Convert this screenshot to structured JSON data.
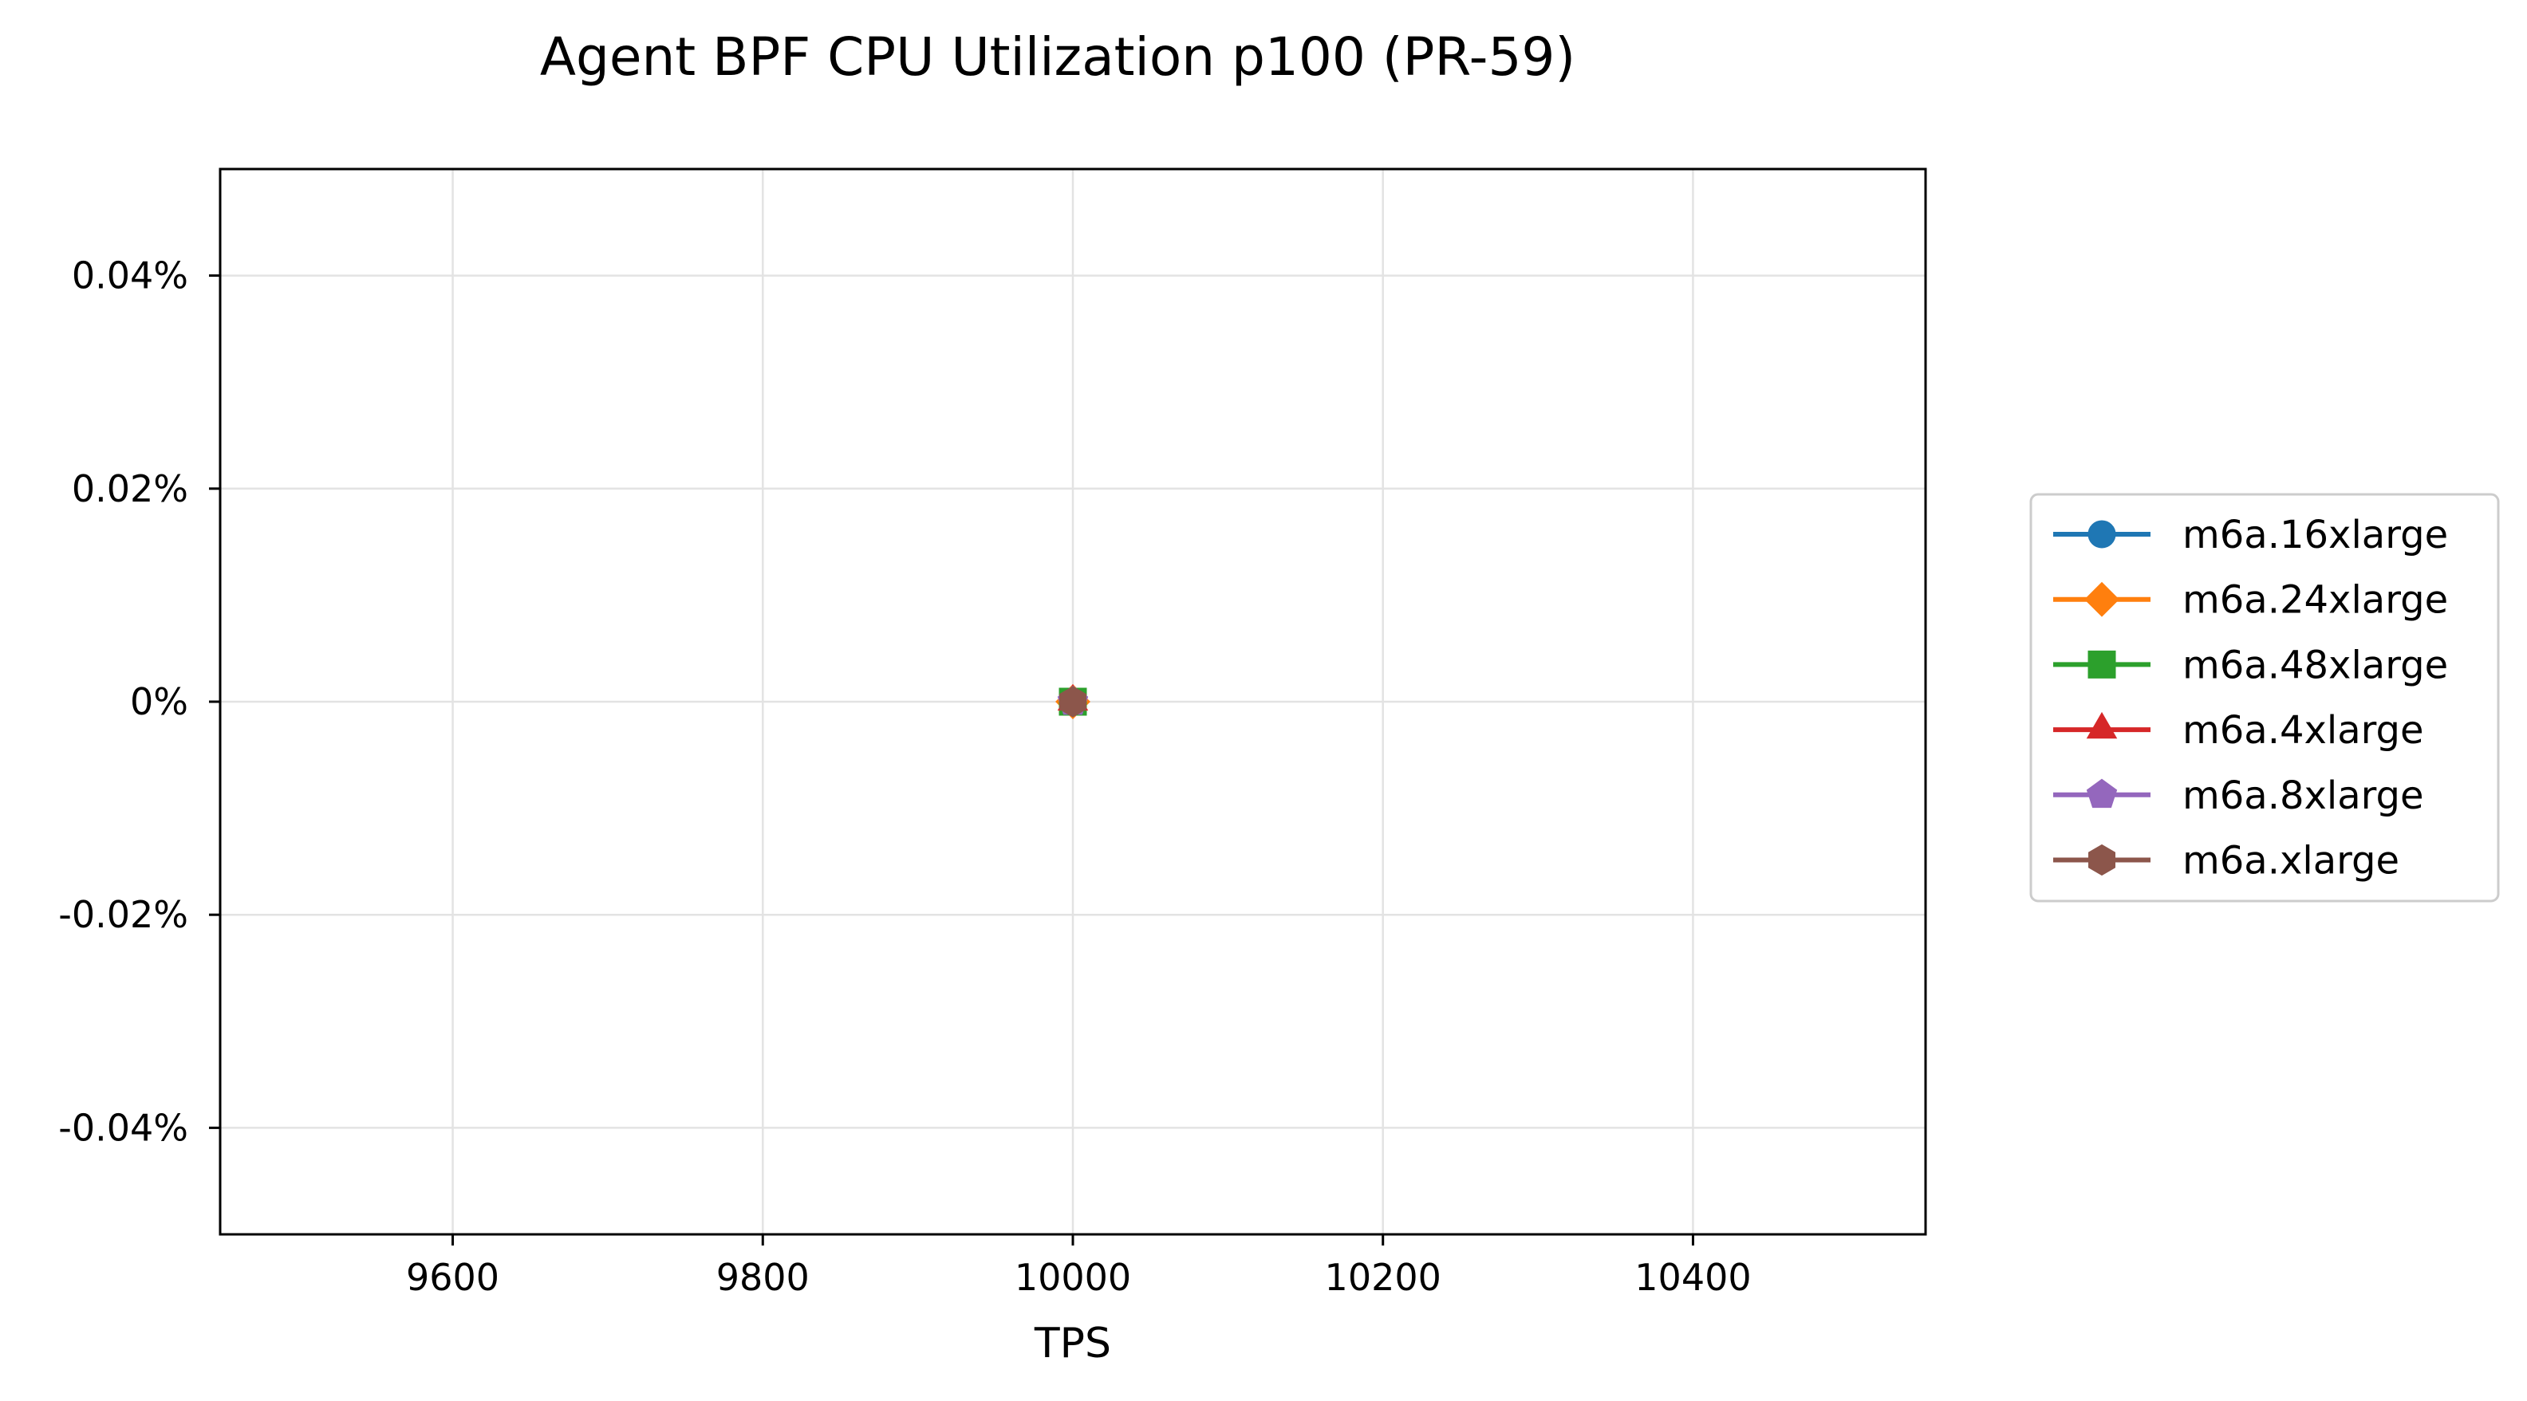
{
  "chart_data": {
    "type": "line",
    "title": "Agent BPF CPU Utilization p100 (PR-59)",
    "xlabel": "TPS",
    "ylabel": "",
    "xlim": [
      9450,
      10550
    ],
    "ylim": [
      -0.0005,
      0.0005
    ],
    "x_ticks": [
      9600,
      9800,
      10000,
      10200,
      10400
    ],
    "x_tick_labels": [
      "9600",
      "9800",
      "10000",
      "10200",
      "10400"
    ],
    "y_ticks": [
      0.0004,
      0.0002,
      0,
      -0.0002,
      -0.0004
    ],
    "y_tick_labels": [
      "0.04%",
      "0.02%",
      "0%",
      "-0.02%",
      "-0.04%"
    ],
    "grid": true,
    "legend_position": "outside right, center",
    "series": [
      {
        "name": "m6a.16xlarge",
        "color": "#1f77b4",
        "marker": "circle",
        "x": [
          10000
        ],
        "y": [
          0
        ]
      },
      {
        "name": "m6a.24xlarge",
        "color": "#ff7f0e",
        "marker": "diamond",
        "x": [
          10000
        ],
        "y": [
          0
        ]
      },
      {
        "name": "m6a.48xlarge",
        "color": "#2ca02c",
        "marker": "square",
        "x": [
          10000
        ],
        "y": [
          0
        ]
      },
      {
        "name": "m6a.4xlarge",
        "color": "#d62728",
        "marker": "triangle",
        "x": [
          10000
        ],
        "y": [
          0
        ]
      },
      {
        "name": "m6a.8xlarge",
        "color": "#9467bd",
        "marker": "pentagon",
        "x": [
          10000
        ],
        "y": [
          0
        ]
      },
      {
        "name": "m6a.xlarge",
        "color": "#8c564b",
        "marker": "hexagon",
        "x": [
          10000
        ],
        "y": [
          0
        ]
      }
    ]
  }
}
